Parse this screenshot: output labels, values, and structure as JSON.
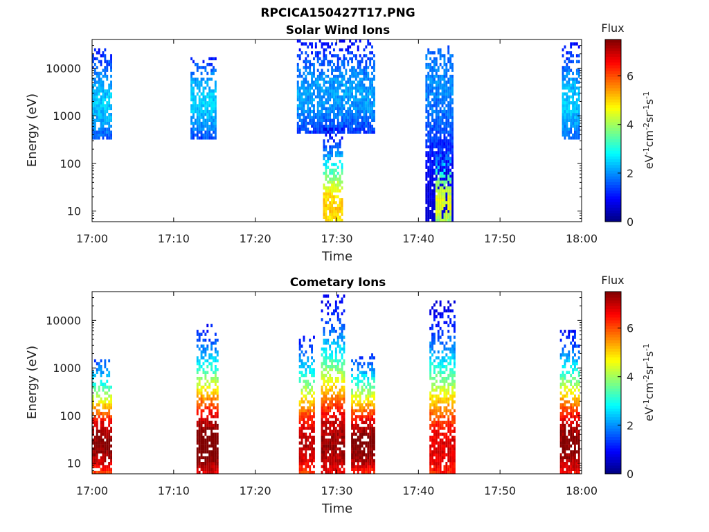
{
  "figure_title": "RPCICA150427T17.PNG",
  "chart_data": [
    {
      "type": "heatmap",
      "title": "Solar Wind Ions",
      "xlabel": "Time",
      "ylabel": "Energy (eV)",
      "x_ticks": [
        "17:00",
        "17:10",
        "17:20",
        "17:30",
        "17:40",
        "17:50",
        "18:00"
      ],
      "x_range_minutes": [
        0,
        60
      ],
      "y_scale": "log",
      "y_ticks": [
        10,
        100,
        1000,
        10000
      ],
      "y_tick_labels": [
        "10",
        "100",
        "1000",
        "10000"
      ],
      "y_range": [
        6,
        40000
      ],
      "colorbar": {
        "title": "Flux",
        "label": "eV-1cm-2sr-1s-1",
        "ticks": [
          "0",
          "2",
          "4",
          "6"
        ],
        "range": [
          0,
          7.5
        ],
        "colormap": "jet"
      },
      "bursts": [
        {
          "start_min": 0.0,
          "end_min": 2.6,
          "e_low": 320,
          "e_high": 28000,
          "peak_flux": 2.1,
          "peak_energy": 2000
        },
        {
          "start_min": 12.0,
          "end_min": 15.5,
          "e_low": 330,
          "e_high": 16000,
          "peak_flux": 2.2,
          "peak_energy": 2000
        },
        {
          "start_min": 25.0,
          "end_min": 34.8,
          "e_low": 400,
          "e_high": 40000,
          "peak_flux": 1.8,
          "peak_energy": 3000
        },
        {
          "start_min": 28.2,
          "end_min": 30.8,
          "e_low": 6,
          "e_high": 600,
          "peak_flux": 4.8,
          "peak_energy": 12
        },
        {
          "start_min": 40.8,
          "end_min": 44.3,
          "e_low": 6,
          "e_high": 30000,
          "peak_flux": 1.6,
          "peak_energy": 5000
        },
        {
          "start_min": 42.0,
          "end_min": 44.2,
          "e_low": 6,
          "e_high": 300,
          "peak_flux": 4.2,
          "peak_energy": 15
        },
        {
          "start_min": 57.5,
          "end_min": 60.0,
          "e_low": 330,
          "e_high": 36000,
          "peak_flux": 2.1,
          "peak_energy": 2000
        }
      ]
    },
    {
      "type": "heatmap",
      "title": "Cometary Ions",
      "xlabel": "Time",
      "ylabel": "Energy (eV)",
      "x_ticks": [
        "17:00",
        "17:10",
        "17:20",
        "17:30",
        "17:40",
        "17:50",
        "18:00"
      ],
      "x_range_minutes": [
        0,
        60
      ],
      "y_scale": "log",
      "y_ticks": [
        10,
        100,
        1000,
        10000
      ],
      "y_tick_labels": [
        "10",
        "100",
        "1000",
        "10000"
      ],
      "y_range": [
        6,
        40000
      ],
      "colorbar": {
        "title": "Flux",
        "label": "eV-1cm-2sr-1s-1",
        "ticks": [
          "0",
          "2",
          "4",
          "6"
        ],
        "range": [
          0,
          7.5
        ],
        "colormap": "jet"
      },
      "bursts": [
        {
          "start_min": 0.0,
          "end_min": 2.6,
          "e_low": 6,
          "e_high": 1600,
          "peak_flux": 7.2,
          "peak_energy": 25
        },
        {
          "start_min": 12.7,
          "end_min": 15.6,
          "e_low": 6,
          "e_high": 9000,
          "peak_flux": 7.4,
          "peak_energy": 25
        },
        {
          "start_min": 25.2,
          "end_min": 27.5,
          "e_low": 6,
          "e_high": 5000,
          "peak_flux": 6.8,
          "peak_energy": 25
        },
        {
          "start_min": 28.0,
          "end_min": 31.2,
          "e_low": 6,
          "e_high": 35000,
          "peak_flux": 7.0,
          "peak_energy": 25
        },
        {
          "start_min": 31.6,
          "end_min": 34.8,
          "e_low": 6,
          "e_high": 2000,
          "peak_flux": 7.3,
          "peak_energy": 25
        },
        {
          "start_min": 41.2,
          "end_min": 44.6,
          "e_low": 6,
          "e_high": 25000,
          "peak_flux": 6.5,
          "peak_energy": 20
        },
        {
          "start_min": 57.2,
          "end_min": 60.0,
          "e_low": 6,
          "e_high": 6000,
          "peak_flux": 7.2,
          "peak_energy": 25
        }
      ]
    }
  ]
}
